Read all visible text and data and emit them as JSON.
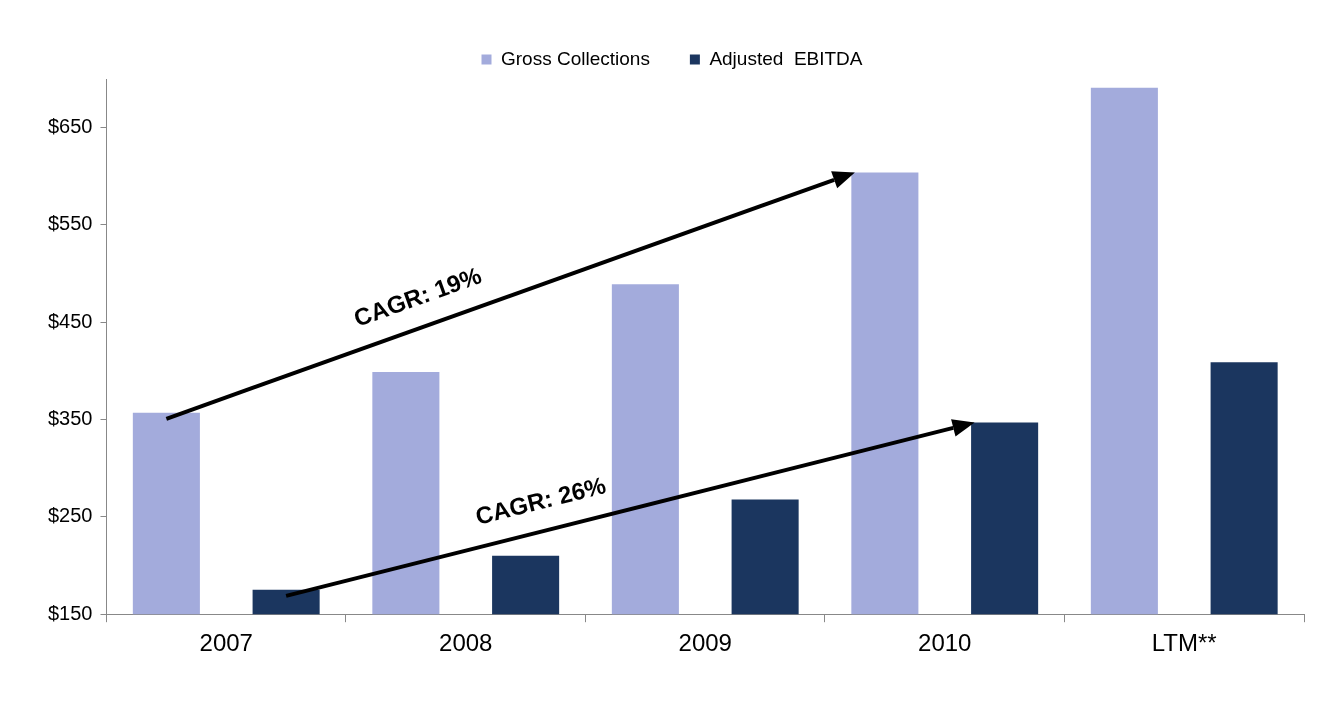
{
  "chart_data": {
    "type": "bar",
    "categories": [
      "2007",
      "2008",
      "2009",
      "2010",
      "LTM**"
    ],
    "series": [
      {
        "name": "Gross Collections",
        "color": "#a3abdc",
        "values": [
          357,
          399,
          489,
          604,
          691
        ]
      },
      {
        "name": "Adjusted  EBITDA",
        "color": "#1b365f",
        "values": [
          175,
          210,
          268,
          347,
          409
        ]
      }
    ],
    "ylim": [
      150,
      700
    ],
    "yticks": [
      {
        "value": 150,
        "label": "$150"
      },
      {
        "value": 250,
        "label": "$250"
      },
      {
        "value": 350,
        "label": "$350"
      },
      {
        "value": 450,
        "label": "$450"
      },
      {
        "value": 550,
        "label": "$550"
      },
      {
        "value": 650,
        "label": "$650"
      }
    ],
    "annotations": [
      "CAGR: 19%",
      "CAGR: 26%"
    ],
    "grid": false,
    "legend": "top"
  }
}
